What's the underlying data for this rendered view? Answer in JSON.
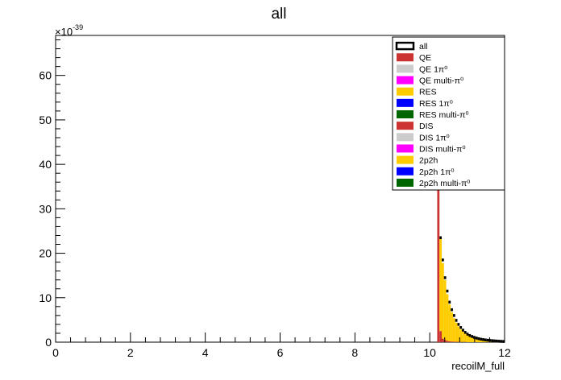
{
  "chart_data": {
    "type": "histogram-stack",
    "title": "all",
    "xlabel": "recoilM_full",
    "ylabel": "",
    "y_exponent_label": "×10",
    "y_exponent_power": "-39",
    "xlim": [
      0,
      12
    ],
    "ylim": [
      0,
      69
    ],
    "x_ticks": [
      "0",
      "2",
      "4",
      "6",
      "8",
      "10",
      "12"
    ],
    "y_ticks": [
      "0",
      "10",
      "20",
      "30",
      "40",
      "50",
      "60"
    ],
    "legend_position": "top-right",
    "legend": [
      {
        "label": "all",
        "color": "#000000",
        "style": "outline"
      },
      {
        "label": "QE",
        "color": "#cc3333",
        "style": "fill"
      },
      {
        "label": "QE 1π⁰",
        "color": "#cccccc",
        "style": "fill"
      },
      {
        "label": "QE multi-π⁰",
        "color": "#ff00ff",
        "style": "fill"
      },
      {
        "label": "RES",
        "color": "#ffcc00",
        "style": "fill"
      },
      {
        "label": "RES 1π⁰",
        "color": "#0000ff",
        "style": "fill"
      },
      {
        "label": "RES multi-π⁰",
        "color": "#006600",
        "style": "fill"
      },
      {
        "label": "DIS",
        "color": "#cc3333",
        "style": "fill"
      },
      {
        "label": "DIS 1π⁰",
        "color": "#cccccc",
        "style": "fill"
      },
      {
        "label": "DIS multi-π⁰",
        "color": "#ff00ff",
        "style": "fill"
      },
      {
        "label": "2p2h",
        "color": "#ffcc00",
        "style": "fill"
      },
      {
        "label": "2p2h 1π⁰",
        "color": "#0000ff",
        "style": "fill"
      },
      {
        "label": "2p2h multi-π⁰",
        "color": "#006600",
        "style": "fill"
      }
    ],
    "bin_width": 0.06,
    "x": [
      10.23,
      10.29,
      10.35,
      10.41,
      10.47,
      10.53,
      10.59,
      10.65,
      10.71,
      10.77,
      10.83,
      10.89,
      10.95,
      11.01,
      11.07,
      11.13,
      11.19,
      11.25,
      11.31,
      11.37,
      11.43,
      11.49,
      11.55,
      11.61,
      11.67,
      11.73,
      11.79,
      11.85,
      11.91,
      11.97
    ],
    "series": [
      {
        "name": "QE",
        "color": "#cc3333",
        "values": [
          67.0,
          2.5,
          0.8,
          0.5,
          0.3,
          0.2,
          0.15,
          0.1,
          0.1,
          0.05,
          0.05,
          0.05,
          0.05,
          0,
          0,
          0,
          0,
          0,
          0,
          0,
          0,
          0,
          0,
          0,
          0,
          0,
          0,
          0,
          0,
          0
        ]
      },
      {
        "name": "RES",
        "color": "#ffcc00",
        "values": [
          0.0,
          21.0,
          17.0,
          13.5,
          10.5,
          8.3,
          6.6,
          5.3,
          4.3,
          3.5,
          2.8,
          2.3,
          1.9,
          1.6,
          1.35,
          1.15,
          0.98,
          0.84,
          0.72,
          0.62,
          0.54,
          0.47,
          0.41,
          0.36,
          0.31,
          0.27,
          0.23,
          0.2,
          0.17,
          0.15
        ]
      },
      {
        "name": "all",
        "color": "#000000",
        "values": [
          67.0,
          23.5,
          18.5,
          14.5,
          11.5,
          9.0,
          7.3,
          6.0,
          4.9,
          4.0,
          3.3,
          2.7,
          2.2,
          1.8,
          1.5,
          1.28,
          1.08,
          0.92,
          0.78,
          0.67,
          0.58,
          0.5,
          0.44,
          0.38,
          0.33,
          0.29,
          0.25,
          0.21,
          0.18,
          0.16
        ]
      }
    ]
  }
}
